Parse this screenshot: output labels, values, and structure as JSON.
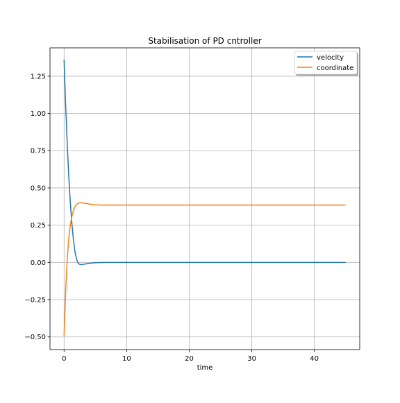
{
  "chart_data": {
    "type": "line",
    "title": "Stabilisation of PD cntroller",
    "xlabel": "time",
    "ylabel": "",
    "xlim": [
      -2.25,
      47.25
    ],
    "ylim": [
      -0.585,
      1.44
    ],
    "grid": true,
    "legend_position": "top-right",
    "x_ticks": [
      0,
      10,
      20,
      30,
      40
    ],
    "x_tick_labels": [
      "0",
      "10",
      "20",
      "30",
      "40"
    ],
    "y_ticks": [
      -0.5,
      -0.25,
      0.0,
      0.25,
      0.5,
      0.75,
      1.0,
      1.25
    ],
    "y_tick_labels": [
      "−0.50",
      "−0.25",
      "0.00",
      "0.25",
      "0.50",
      "0.75",
      "1.00",
      "1.25"
    ],
    "series": [
      {
        "name": "velocity",
        "color": "#1f77b4",
        "x": [
          0,
          0.25,
          0.5,
          0.75,
          1.0,
          1.25,
          1.5,
          1.75,
          2.0,
          2.25,
          2.5,
          2.75,
          3.0,
          3.5,
          4.0,
          4.5,
          5.0,
          6.0,
          7.0,
          8.0,
          10.0,
          15.0,
          20.0,
          30.0,
          45.0
        ],
        "y": [
          1.36,
          1.06,
          0.8,
          0.58,
          0.4,
          0.26,
          0.15,
          0.07,
          0.02,
          -0.005,
          -0.013,
          -0.015,
          -0.013,
          -0.01,
          -0.006,
          -0.004,
          -0.002,
          -0.001,
          0.0,
          0.0,
          0.0,
          0.0,
          0.0,
          0.0,
          0.0
        ]
      },
      {
        "name": "coordinate",
        "color": "#ff7f0e",
        "x": [
          0,
          0.25,
          0.5,
          0.75,
          1.0,
          1.25,
          1.5,
          1.75,
          2.0,
          2.25,
          2.5,
          2.75,
          3.0,
          3.5,
          4.0,
          4.5,
          5.0,
          6.0,
          7.0,
          8.0,
          10.0,
          15.0,
          20.0,
          30.0,
          45.0
        ],
        "y": [
          -0.49,
          -0.2,
          0.02,
          0.16,
          0.25,
          0.31,
          0.35,
          0.375,
          0.39,
          0.397,
          0.4,
          0.4,
          0.399,
          0.396,
          0.392,
          0.389,
          0.387,
          0.385,
          0.385,
          0.385,
          0.385,
          0.385,
          0.385,
          0.385,
          0.385
        ]
      }
    ]
  }
}
